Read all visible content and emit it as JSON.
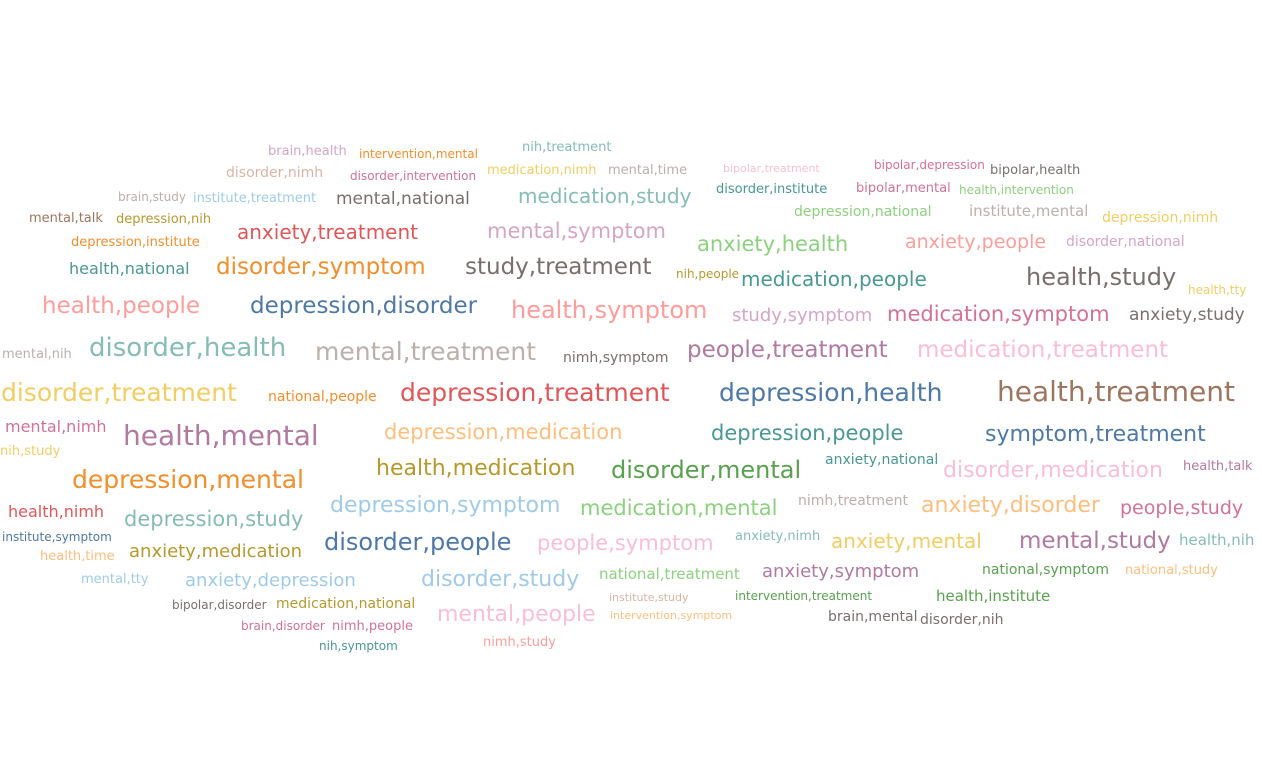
{
  "word_cloud": {
    "colors": {
      "blue": "#4e79a7",
      "lightblue": "#a0cbe8",
      "orange": "#f28e2b",
      "lightorange": "#ffbe7d",
      "green": "#59a14f",
      "lightgreen": "#8cd17d",
      "olive": "#b6992d",
      "yellow": "#f1ce63",
      "teal": "#499894",
      "lightteal": "#86bcb6",
      "red": "#e15759",
      "pink": "#ff9d9a",
      "gray": "#79706e",
      "lightgray": "#bab0ac",
      "magenta": "#d37295",
      "lightpink": "#fabfd2",
      "purple": "#b07aa1",
      "lilac": "#d4a6c8",
      "brown": "#9d7660",
      "tan": "#d7b5a6"
    },
    "words": [
      {
        "text": "brain,health",
        "color": "lilac"
      },
      {
        "text": "intervention,mental",
        "color": "orange"
      },
      {
        "text": "nih,treatment",
        "color": "lightteal"
      },
      {
        "text": "bipolar,depression",
        "color": "magenta"
      },
      {
        "text": "disorder,nimh",
        "color": "tan"
      },
      {
        "text": "disorder,intervention",
        "color": "magenta"
      },
      {
        "text": "medication,nimh",
        "color": "yellow"
      },
      {
        "text": "mental,time",
        "color": "lightgray"
      },
      {
        "text": "bipolar,treatment",
        "color": "lightpink"
      },
      {
        "text": "bipolar,health",
        "color": "gray"
      },
      {
        "text": "brain,study",
        "color": "lightgray"
      },
      {
        "text": "institute,treatment",
        "color": "lightblue"
      },
      {
        "text": "mental,national",
        "color": "gray"
      },
      {
        "text": "medication,study",
        "color": "lightteal"
      },
      {
        "text": "disorder,institute",
        "color": "teal"
      },
      {
        "text": "bipolar,mental",
        "color": "magenta"
      },
      {
        "text": "health,intervention",
        "color": "lightgreen"
      },
      {
        "text": "mental,talk",
        "color": "brown"
      },
      {
        "text": "depression,nih",
        "color": "olive"
      },
      {
        "text": "depression,national",
        "color": "lightgreen"
      },
      {
        "text": "institute,mental",
        "color": "lightgray"
      },
      {
        "text": "depression,nimh",
        "color": "yellow"
      },
      {
        "text": "depression,institute",
        "color": "orange"
      },
      {
        "text": "anxiety,treatment",
        "color": "red"
      },
      {
        "text": "mental,symptom",
        "color": "lilac"
      },
      {
        "text": "anxiety,health",
        "color": "lightgreen"
      },
      {
        "text": "anxiety,people",
        "color": "pink"
      },
      {
        "text": "disorder,national",
        "color": "lilac"
      },
      {
        "text": "health,national",
        "color": "teal"
      },
      {
        "text": "disorder,symptom",
        "color": "orange"
      },
      {
        "text": "study,treatment",
        "color": "gray"
      },
      {
        "text": "nih,people",
        "color": "olive"
      },
      {
        "text": "medication,people",
        "color": "teal"
      },
      {
        "text": "health,study",
        "color": "gray"
      },
      {
        "text": "health,tty",
        "color": "yellow"
      },
      {
        "text": "health,people",
        "color": "pink"
      },
      {
        "text": "depression,disorder",
        "color": "blue"
      },
      {
        "text": "health,symptom",
        "color": "pink"
      },
      {
        "text": "study,symptom",
        "color": "lilac"
      },
      {
        "text": "medication,symptom",
        "color": "magenta"
      },
      {
        "text": "anxiety,study",
        "color": "gray"
      },
      {
        "text": "mental,nih",
        "color": "lightgray"
      },
      {
        "text": "disorder,health",
        "color": "lightteal"
      },
      {
        "text": "mental,treatment",
        "color": "lightgray"
      },
      {
        "text": "nimh,symptom",
        "color": "gray"
      },
      {
        "text": "people,treatment",
        "color": "purple"
      },
      {
        "text": "medication,treatment",
        "color": "lightpink"
      },
      {
        "text": "disorder,treatment",
        "color": "yellow"
      },
      {
        "text": "national,people",
        "color": "orange"
      },
      {
        "text": "depression,treatment",
        "color": "red"
      },
      {
        "text": "depression,health",
        "color": "blue"
      },
      {
        "text": "health,treatment",
        "color": "brown"
      },
      {
        "text": "mental,nimh",
        "color": "magenta"
      },
      {
        "text": "health,mental",
        "color": "purple"
      },
      {
        "text": "depression,medication",
        "color": "lightorange"
      },
      {
        "text": "depression,people",
        "color": "teal"
      },
      {
        "text": "symptom,treatment",
        "color": "blue"
      },
      {
        "text": "nih,study",
        "color": "yellow"
      },
      {
        "text": "depression,mental",
        "color": "orange"
      },
      {
        "text": "health,medication",
        "color": "olive"
      },
      {
        "text": "disorder,mental",
        "color": "green"
      },
      {
        "text": "anxiety,national",
        "color": "teal"
      },
      {
        "text": "disorder,medication",
        "color": "lightpink"
      },
      {
        "text": "health,talk",
        "color": "purple"
      },
      {
        "text": "health,nimh",
        "color": "red"
      },
      {
        "text": "depression,symptom",
        "color": "lightblue"
      },
      {
        "text": "medication,mental",
        "color": "lightgreen"
      },
      {
        "text": "nimh,treatment",
        "color": "lightgray"
      },
      {
        "text": "anxiety,disorder",
        "color": "lightorange"
      },
      {
        "text": "people,study",
        "color": "magenta"
      },
      {
        "text": "depression,study",
        "color": "lightteal"
      },
      {
        "text": "institute,symptom",
        "color": "blue"
      },
      {
        "text": "disorder,people",
        "color": "blue"
      },
      {
        "text": "people,symptom",
        "color": "lightpink"
      },
      {
        "text": "anxiety,nimh",
        "color": "lightteal"
      },
      {
        "text": "anxiety,mental",
        "color": "yellow"
      },
      {
        "text": "mental,study",
        "color": "purple"
      },
      {
        "text": "health,nih",
        "color": "lightteal"
      },
      {
        "text": "health,time",
        "color": "lightorange"
      },
      {
        "text": "anxiety,medication",
        "color": "olive"
      },
      {
        "text": "mental,tty",
        "color": "lightblue"
      },
      {
        "text": "anxiety,depression",
        "color": "lightblue"
      },
      {
        "text": "disorder,study",
        "color": "lightblue"
      },
      {
        "text": "national,treatment",
        "color": "lightgreen"
      },
      {
        "text": "anxiety,symptom",
        "color": "purple"
      },
      {
        "text": "national,symptom",
        "color": "green"
      },
      {
        "text": "national,study",
        "color": "lightorange"
      },
      {
        "text": "bipolar,disorder",
        "color": "gray"
      },
      {
        "text": "medication,national",
        "color": "olive"
      },
      {
        "text": "institute,study",
        "color": "tan"
      },
      {
        "text": "intervention,treatment",
        "color": "green"
      },
      {
        "text": "health,institute",
        "color": "green"
      },
      {
        "text": "mental,people",
        "color": "lightpink"
      },
      {
        "text": "brain,mental",
        "color": "gray"
      },
      {
        "text": "disorder,nih",
        "color": "gray"
      },
      {
        "text": "brain,disorder",
        "color": "magenta"
      },
      {
        "text": "nimh,people",
        "color": "magenta"
      },
      {
        "text": "intervention,symptom",
        "color": "lightorange"
      },
      {
        "text": "nih,symptom",
        "color": "teal"
      },
      {
        "text": "nimh,study",
        "color": "pink"
      }
    ]
  }
}
